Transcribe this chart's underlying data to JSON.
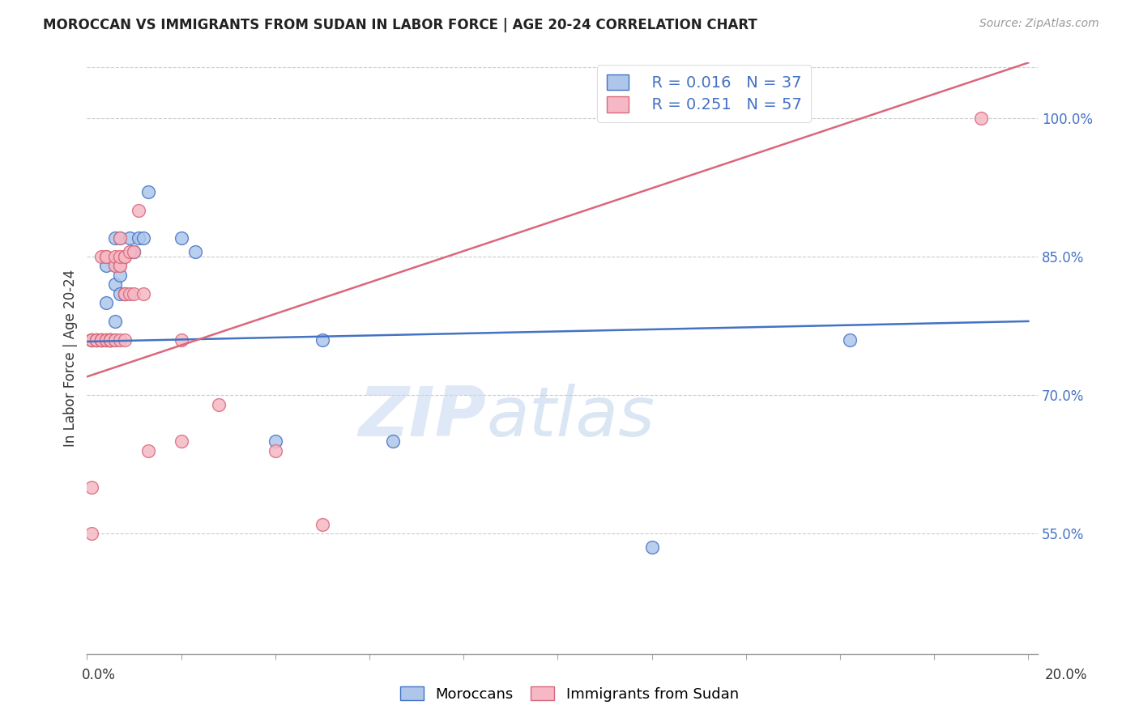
{
  "title": "MOROCCAN VS IMMIGRANTS FROM SUDAN IN LABOR FORCE | AGE 20-24 CORRELATION CHART",
  "source": "Source: ZipAtlas.com",
  "ylabel": "In Labor Force | Age 20-24",
  "ylim": [
    0.42,
    1.06
  ],
  "xlim": [
    0.0,
    0.202
  ],
  "blue_R": "R = 0.016",
  "blue_N": "N = 37",
  "pink_R": "R = 0.251",
  "pink_N": "N = 57",
  "blue_color": "#aec6ea",
  "pink_color": "#f5b8c4",
  "blue_line_color": "#4472c4",
  "pink_line_color": "#d9687a",
  "legend_label_blue": "Moroccans",
  "legend_label_pink": "Immigrants from Sudan",
  "blue_trend": [
    0.0,
    0.758,
    0.2,
    0.78
  ],
  "pink_trend": [
    0.0,
    0.72,
    0.2,
    1.06
  ],
  "blue_x": [
    0.001,
    0.001,
    0.002,
    0.002,
    0.003,
    0.003,
    0.004,
    0.004,
    0.004,
    0.005,
    0.005,
    0.005,
    0.005,
    0.005,
    0.005,
    0.006,
    0.006,
    0.006,
    0.006,
    0.007,
    0.007,
    0.007,
    0.008,
    0.008,
    0.009,
    0.01,
    0.01,
    0.011,
    0.012,
    0.013,
    0.02,
    0.023,
    0.04,
    0.05,
    0.065,
    0.12,
    0.162
  ],
  "blue_y": [
    0.76,
    0.76,
    0.76,
    0.76,
    0.76,
    0.76,
    0.76,
    0.8,
    0.84,
    0.76,
    0.76,
    0.76,
    0.76,
    0.76,
    0.76,
    0.78,
    0.82,
    0.84,
    0.87,
    0.81,
    0.83,
    0.87,
    0.81,
    0.81,
    0.87,
    0.855,
    0.855,
    0.87,
    0.87,
    0.92,
    0.87,
    0.855,
    0.65,
    0.76,
    0.65,
    0.535,
    0.76
  ],
  "pink_x": [
    0.001,
    0.001,
    0.001,
    0.001,
    0.001,
    0.001,
    0.002,
    0.002,
    0.002,
    0.002,
    0.002,
    0.003,
    0.003,
    0.003,
    0.003,
    0.003,
    0.003,
    0.003,
    0.004,
    0.004,
    0.004,
    0.004,
    0.004,
    0.005,
    0.005,
    0.005,
    0.005,
    0.005,
    0.005,
    0.006,
    0.006,
    0.006,
    0.006,
    0.007,
    0.007,
    0.007,
    0.007,
    0.007,
    0.008,
    0.008,
    0.008,
    0.008,
    0.008,
    0.008,
    0.009,
    0.009,
    0.01,
    0.01,
    0.011,
    0.012,
    0.013,
    0.02,
    0.02,
    0.028,
    0.04,
    0.05,
    0.19
  ],
  "pink_y": [
    0.76,
    0.76,
    0.76,
    0.76,
    0.6,
    0.55,
    0.76,
    0.76,
    0.76,
    0.76,
    0.76,
    0.76,
    0.76,
    0.76,
    0.76,
    0.76,
    0.76,
    0.85,
    0.76,
    0.76,
    0.76,
    0.85,
    0.85,
    0.76,
    0.76,
    0.76,
    0.76,
    0.76,
    0.76,
    0.76,
    0.76,
    0.84,
    0.85,
    0.76,
    0.84,
    0.84,
    0.85,
    0.87,
    0.76,
    0.81,
    0.81,
    0.81,
    0.85,
    0.85,
    0.81,
    0.855,
    0.81,
    0.855,
    0.9,
    0.81,
    0.64,
    0.65,
    0.76,
    0.69,
    0.64,
    0.56,
    1.0
  ],
  "watermark_zip": "ZIP",
  "watermark_atlas": "atlas",
  "background_color": "#ffffff",
  "yticks": [
    0.55,
    0.7,
    0.85,
    1.0
  ],
  "ytick_labels": [
    "55.0%",
    "70.0%",
    "85.0%",
    "100.0%"
  ],
  "xtick_count": 10
}
